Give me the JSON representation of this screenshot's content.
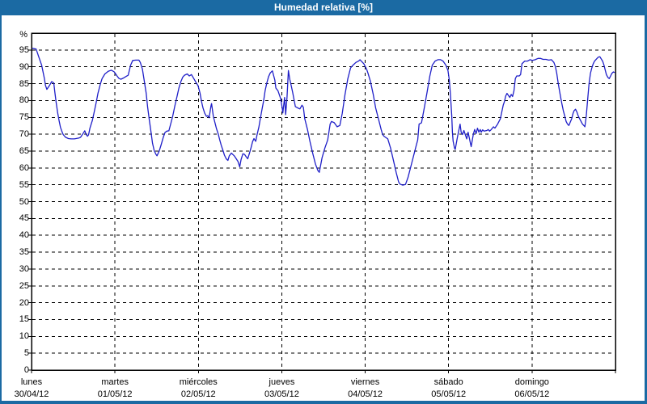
{
  "window": {
    "title": "Humedad relativa [%]"
  },
  "colors": {
    "titlebar_bg": "#1b6aa3",
    "frame": "#1b6aa3",
    "line": "#1f1fc8",
    "grid": "#000000",
    "plot_border": "#000000",
    "title_text": "#ffffff",
    "label_text": "#000000",
    "plot_bg": "#ffffff"
  },
  "chart_data": {
    "type": "line",
    "title": "Humedad relativa [%]",
    "ylabel": "%",
    "xlabel": "",
    "ylim": [
      0,
      100
    ],
    "xlim": [
      0,
      168
    ],
    "x_unit": "hours_since_monday_00h",
    "grid": {
      "horizontal": "dashed",
      "vertical": "dashed",
      "legend": "none"
    },
    "ytick_labels": [
      0,
      5,
      10,
      15,
      20,
      25,
      30,
      35,
      40,
      45,
      50,
      55,
      60,
      65,
      70,
      75,
      80,
      85,
      90,
      95
    ],
    "days": [
      {
        "name": "lunes",
        "date": "30/04/12",
        "hour": 0
      },
      {
        "name": "martes",
        "date": "01/05/12",
        "hour": 24
      },
      {
        "name": "miércoles",
        "date": "02/05/12",
        "hour": 48
      },
      {
        "name": "jueves",
        "date": "03/05/12",
        "hour": 72
      },
      {
        "name": "viernes",
        "date": "04/05/12",
        "hour": 96
      },
      {
        "name": "sábado",
        "date": "05/05/12",
        "hour": 120
      },
      {
        "name": "domingo",
        "date": "06/05/12",
        "hour": 144
      }
    ],
    "series": [
      {
        "name": "Humedad relativa",
        "color": "#1f1fc8",
        "points": [
          [
            0.2,
            95.5
          ],
          [
            1.3,
            95.3
          ],
          [
            2.1,
            92.9
          ],
          [
            2.9,
            90.5
          ],
          [
            3.7,
            86.5
          ],
          [
            4.0,
            84.5
          ],
          [
            4.4,
            83.3
          ],
          [
            5.2,
            84.5
          ],
          [
            5.8,
            85.6
          ],
          [
            6.4,
            85.2
          ],
          [
            6.7,
            82.5
          ],
          [
            7.1,
            79.3
          ],
          [
            7.5,
            76.5
          ],
          [
            7.9,
            74.1
          ],
          [
            8.3,
            72.1
          ],
          [
            8.7,
            70.9
          ],
          [
            9.1,
            69.9
          ],
          [
            9.8,
            69.1
          ],
          [
            10.6,
            68.7
          ],
          [
            11.4,
            68.6
          ],
          [
            12.3,
            68.6
          ],
          [
            13.7,
            68.9
          ],
          [
            14.1,
            69.1
          ],
          [
            14.9,
            70.3
          ],
          [
            15.3,
            71.0
          ],
          [
            15.7,
            69.9
          ],
          [
            16.1,
            69.4
          ],
          [
            16.4,
            69.8
          ],
          [
            16.8,
            71.8
          ],
          [
            17.5,
            74.1
          ],
          [
            18.0,
            76.5
          ],
          [
            18.5,
            78.9
          ],
          [
            19.1,
            82.1
          ],
          [
            19.8,
            84.9
          ],
          [
            20.3,
            86.5
          ],
          [
            21.1,
            87.9
          ],
          [
            22.1,
            88.7
          ],
          [
            23.0,
            89.0
          ],
          [
            23.8,
            88.5
          ],
          [
            24.6,
            87.3
          ],
          [
            25.1,
            86.6
          ],
          [
            25.7,
            86.3
          ],
          [
            26.3,
            86.6
          ],
          [
            27.8,
            87.5
          ],
          [
            28.5,
            90.5
          ],
          [
            29.1,
            91.9
          ],
          [
            30.0,
            92.0
          ],
          [
            30.9,
            92.0
          ],
          [
            31.3,
            91.3
          ],
          [
            31.9,
            89.3
          ],
          [
            32.4,
            86.1
          ],
          [
            33.0,
            82.1
          ],
          [
            33.4,
            78.1
          ],
          [
            33.9,
            74.1
          ],
          [
            34.4,
            70.5
          ],
          [
            34.8,
            67.3
          ],
          [
            35.3,
            65.1
          ],
          [
            35.8,
            64.0
          ],
          [
            36.1,
            63.6
          ],
          [
            36.7,
            64.9
          ],
          [
            37.3,
            66.9
          ],
          [
            37.9,
            69.1
          ],
          [
            38.4,
            70.5
          ],
          [
            38.9,
            70.9
          ],
          [
            39.5,
            71.0
          ],
          [
            40.0,
            72.9
          ],
          [
            40.6,
            75.3
          ],
          [
            41.2,
            78.3
          ],
          [
            41.8,
            80.9
          ],
          [
            42.4,
            83.7
          ],
          [
            43.0,
            85.7
          ],
          [
            43.5,
            86.9
          ],
          [
            44.0,
            87.5
          ],
          [
            44.8,
            87.9
          ],
          [
            45.4,
            87.3
          ],
          [
            46.0,
            87.7
          ],
          [
            46.8,
            86.3
          ],
          [
            47.4,
            85.2
          ],
          [
            47.9,
            84.4
          ],
          [
            48.5,
            82.1
          ],
          [
            48.9,
            79.7
          ],
          [
            49.3,
            77.9
          ],
          [
            49.8,
            76.3
          ],
          [
            50.3,
            75.3
          ],
          [
            50.7,
            75.5
          ],
          [
            51.1,
            74.9
          ],
          [
            51.6,
            78.3
          ],
          [
            51.8,
            79.1
          ],
          [
            52.3,
            75.3
          ],
          [
            52.8,
            73.3
          ],
          [
            53.2,
            71.7
          ],
          [
            53.7,
            70.1
          ],
          [
            54.1,
            68.5
          ],
          [
            54.6,
            66.7
          ],
          [
            55.1,
            65.1
          ],
          [
            55.5,
            63.8
          ],
          [
            56.0,
            62.7
          ],
          [
            56.5,
            62.2
          ],
          [
            56.9,
            63.6
          ],
          [
            57.5,
            64.4
          ],
          [
            58.3,
            63.6
          ],
          [
            58.9,
            62.7
          ],
          [
            59.4,
            61.9
          ],
          [
            59.9,
            60.3
          ],
          [
            60.3,
            62.5
          ],
          [
            60.8,
            64.2
          ],
          [
            61.3,
            64.0
          ],
          [
            61.9,
            63.1
          ],
          [
            62.2,
            62.7
          ],
          [
            62.7,
            64.4
          ],
          [
            63.1,
            65.8
          ],
          [
            63.6,
            67.8
          ],
          [
            64.0,
            68.7
          ],
          [
            64.5,
            67.9
          ],
          [
            64.9,
            69.9
          ],
          [
            65.4,
            72.1
          ],
          [
            65.8,
            74.5
          ],
          [
            66.3,
            77.3
          ],
          [
            66.8,
            80.1
          ],
          [
            67.2,
            82.9
          ],
          [
            67.7,
            85.2
          ],
          [
            68.2,
            87.1
          ],
          [
            68.7,
            88.2
          ],
          [
            69.3,
            88.8
          ],
          [
            70.0,
            86.1
          ],
          [
            70.3,
            83.7
          ],
          [
            70.9,
            82.9
          ],
          [
            71.7,
            80.5
          ],
          [
            72.1,
            77.9
          ],
          [
            72.3,
            76.3
          ],
          [
            72.8,
            80.9
          ],
          [
            73.1,
            75.8
          ],
          [
            73.5,
            81.0
          ],
          [
            73.9,
            88.9
          ],
          [
            74.3,
            86.3
          ],
          [
            74.7,
            84.5
          ],
          [
            75.1,
            82.5
          ],
          [
            75.9,
            78.2
          ],
          [
            76.6,
            77.8
          ],
          [
            77.2,
            77.5
          ],
          [
            77.8,
            78.6
          ],
          [
            78.2,
            78.0
          ],
          [
            78.6,
            74.6
          ],
          [
            79.4,
            71.4
          ],
          [
            80.1,
            67.9
          ],
          [
            80.9,
            64.3
          ],
          [
            81.7,
            61.1
          ],
          [
            82.4,
            59.2
          ],
          [
            82.8,
            58.7
          ],
          [
            83.6,
            63.1
          ],
          [
            84.4,
            65.9
          ],
          [
            85.2,
            68.3
          ],
          [
            85.9,
            73.0
          ],
          [
            86.3,
            73.8
          ],
          [
            87.1,
            73.4
          ],
          [
            87.9,
            72.2
          ],
          [
            88.7,
            72.6
          ],
          [
            89.4,
            76.2
          ],
          [
            90.2,
            81.8
          ],
          [
            91.0,
            86.5
          ],
          [
            91.8,
            89.7
          ],
          [
            92.5,
            90.5
          ],
          [
            93.3,
            91.3
          ],
          [
            94.1,
            91.7
          ],
          [
            94.5,
            92.1
          ],
          [
            95.6,
            90.9
          ],
          [
            96.4,
            89.3
          ],
          [
            96.8,
            88.1
          ],
          [
            97.5,
            85.7
          ],
          [
            98.3,
            81.8
          ],
          [
            99.0,
            77.8
          ],
          [
            99.8,
            74.6
          ],
          [
            100.6,
            71.4
          ],
          [
            101.0,
            69.9
          ],
          [
            101.4,
            69.4
          ],
          [
            102.5,
            68.6
          ],
          [
            103.3,
            65.9
          ],
          [
            104.1,
            62.3
          ],
          [
            104.9,
            58.7
          ],
          [
            105.6,
            55.9
          ],
          [
            106.0,
            55.2
          ],
          [
            106.8,
            54.9
          ],
          [
            107.6,
            55.1
          ],
          [
            108.3,
            57.1
          ],
          [
            109.1,
            60.3
          ],
          [
            109.9,
            63.5
          ],
          [
            110.7,
            66.7
          ],
          [
            111.1,
            68.3
          ],
          [
            111.5,
            73.0
          ],
          [
            112.2,
            73.4
          ],
          [
            113.0,
            77.8
          ],
          [
            113.8,
            82.5
          ],
          [
            114.6,
            87.3
          ],
          [
            115.3,
            90.5
          ],
          [
            116.1,
            91.7
          ],
          [
            116.9,
            92.1
          ],
          [
            117.7,
            92.1
          ],
          [
            118.4,
            91.7
          ],
          [
            119.2,
            90.5
          ],
          [
            119.8,
            88.9
          ],
          [
            120.2,
            86.0
          ],
          [
            120.5,
            82.0
          ],
          [
            120.9,
            75.4
          ],
          [
            121.1,
            70.6
          ],
          [
            121.3,
            67.9
          ],
          [
            121.7,
            65.9
          ],
          [
            121.9,
            65.5
          ],
          [
            122.5,
            69.0
          ],
          [
            123.3,
            73.0
          ],
          [
            123.6,
            70.6
          ],
          [
            124.0,
            69.9
          ],
          [
            124.4,
            71.1
          ],
          [
            125.2,
            68.6
          ],
          [
            125.6,
            70.6
          ],
          [
            126.4,
            66.7
          ],
          [
            126.5,
            66.3
          ],
          [
            127.1,
            69.9
          ],
          [
            127.5,
            71.4
          ],
          [
            127.9,
            70.2
          ],
          [
            128.3,
            71.8
          ],
          [
            128.7,
            70.6
          ],
          [
            129.1,
            71.4
          ],
          [
            129.4,
            70.6
          ],
          [
            129.8,
            71.3
          ],
          [
            130.2,
            70.9
          ],
          [
            131.0,
            71.1
          ],
          [
            131.4,
            71.4
          ],
          [
            131.8,
            70.9
          ],
          [
            132.2,
            71.3
          ],
          [
            132.9,
            72.2
          ],
          [
            133.3,
            71.8
          ],
          [
            134.1,
            73.0
          ],
          [
            134.9,
            74.6
          ],
          [
            135.7,
            78.6
          ],
          [
            136.1,
            79.8
          ],
          [
            136.4,
            81.3
          ],
          [
            136.8,
            82.1
          ],
          [
            137.6,
            80.9
          ],
          [
            138.0,
            81.8
          ],
          [
            138.4,
            81.2
          ],
          [
            138.8,
            82.9
          ],
          [
            139.2,
            86.5
          ],
          [
            139.6,
            87.3
          ],
          [
            140.3,
            87.3
          ],
          [
            140.7,
            87.7
          ],
          [
            141.1,
            90.9
          ],
          [
            141.9,
            91.7
          ],
          [
            142.7,
            91.7
          ],
          [
            143.4,
            92.1
          ],
          [
            144.1,
            91.9
          ],
          [
            144.9,
            92.1
          ],
          [
            145.7,
            92.5
          ],
          [
            146.4,
            92.5
          ],
          [
            147.2,
            92.2
          ],
          [
            148.0,
            92.2
          ],
          [
            148.8,
            92.0
          ],
          [
            149.6,
            92.1
          ],
          [
            150.3,
            91.3
          ],
          [
            150.7,
            90.1
          ],
          [
            151.1,
            88.1
          ],
          [
            151.5,
            85.3
          ],
          [
            151.9,
            82.9
          ],
          [
            152.3,
            80.6
          ],
          [
            152.6,
            79.0
          ],
          [
            153.0,
            77.0
          ],
          [
            153.4,
            75.4
          ],
          [
            153.8,
            73.8
          ],
          [
            154.2,
            73.0
          ],
          [
            154.6,
            72.6
          ],
          [
            155.4,
            74.6
          ],
          [
            155.8,
            76.2
          ],
          [
            156.1,
            77.0
          ],
          [
            156.5,
            77.4
          ],
          [
            156.9,
            76.6
          ],
          [
            157.3,
            75.4
          ],
          [
            157.7,
            74.6
          ],
          [
            158.1,
            73.8
          ],
          [
            158.5,
            73.0
          ],
          [
            158.9,
            72.6
          ],
          [
            159.2,
            72.2
          ],
          [
            159.6,
            75.4
          ],
          [
            160.0,
            80.2
          ],
          [
            160.4,
            84.9
          ],
          [
            160.8,
            88.1
          ],
          [
            161.2,
            89.7
          ],
          [
            161.6,
            90.9
          ],
          [
            162.0,
            91.7
          ],
          [
            162.7,
            92.5
          ],
          [
            163.1,
            92.9
          ],
          [
            163.5,
            93.0
          ],
          [
            164.3,
            91.7
          ],
          [
            164.7,
            90.5
          ],
          [
            165.1,
            88.9
          ],
          [
            165.4,
            87.7
          ],
          [
            165.8,
            86.9
          ],
          [
            166.2,
            86.5
          ],
          [
            166.6,
            87.3
          ],
          [
            167.0,
            88.1
          ],
          [
            167.4,
            88.5
          ],
          [
            167.8,
            88.3
          ]
        ]
      }
    ]
  }
}
